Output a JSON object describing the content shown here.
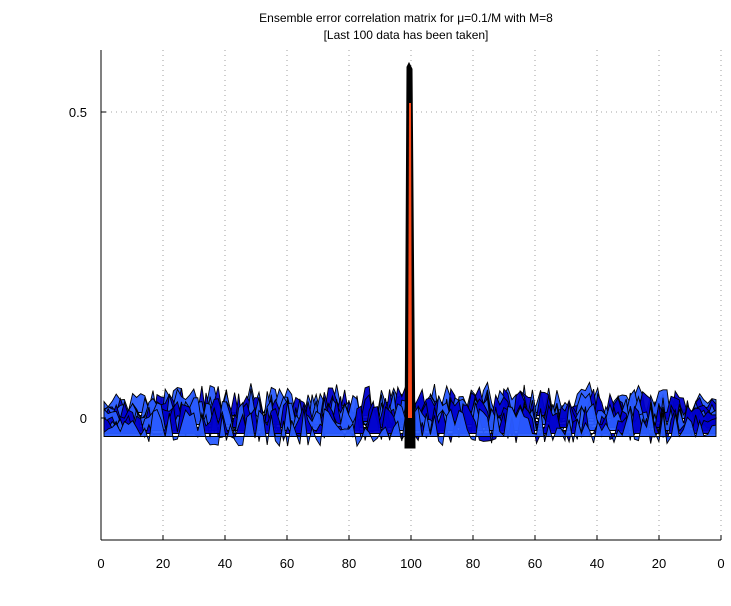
{
  "chart_data": {
    "type": "surface",
    "title": "Ensemble error correlation matrix for μ=0.1/M with M=8",
    "subtitle": "[Last 100 data has been taken]",
    "xlabel": "",
    "ylabel": "",
    "xlim": [
      0,
      200
    ],
    "ylim": [
      -0.2,
      0.6
    ],
    "grid": true,
    "x_tick_labels": [
      "0",
      "20",
      "40",
      "60",
      "80",
      "100",
      "80",
      "60",
      "40",
      "20",
      "0"
    ],
    "y_ticks": [
      0,
      0.5
    ],
    "y_tick_labels": [
      "0",
      "0.5"
    ],
    "matrix_size": 100,
    "diagonal_peak": 0.58,
    "off_diagonal_range": [
      -0.08,
      0.06
    ],
    "colormap": [
      "#0000cc",
      "#2a5cff",
      "#ff4a1a"
    ]
  }
}
